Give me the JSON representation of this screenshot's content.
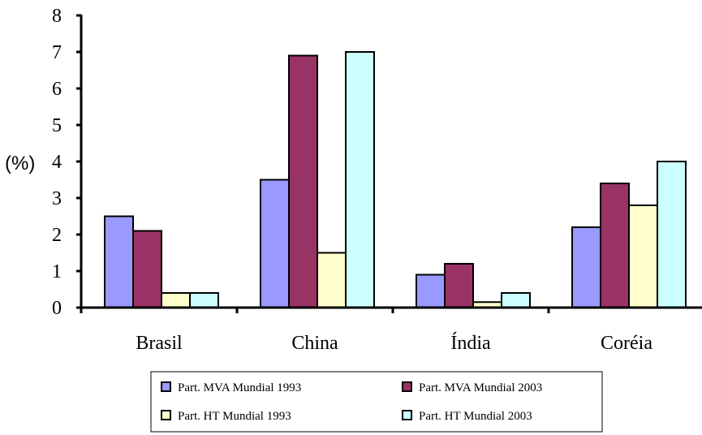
{
  "chart_data": {
    "type": "bar",
    "categories": [
      "Brasil",
      "China",
      "Índia",
      "Coréia"
    ],
    "ylabel": "(%)",
    "ylim": [
      0,
      8
    ],
    "yticks": [
      "0",
      "1",
      "2",
      "3",
      "4",
      "5",
      "6",
      "7",
      "8"
    ],
    "grid": false,
    "legend_position": "bottom",
    "series": [
      {
        "name": "Part. MVA Mundial 1993",
        "color": "#9999ff",
        "values": [
          2.5,
          3.5,
          0.9,
          2.2
        ]
      },
      {
        "name": "Part. MVA Mundial 2003",
        "color": "#993366",
        "values": [
          2.1,
          6.9,
          1.2,
          3.4
        ]
      },
      {
        "name": "Part. HT Mundial 1993",
        "color": "#ffffcc",
        "values": [
          0.4,
          1.5,
          0.15,
          2.8
        ]
      },
      {
        "name": "Part. HT Mundial 2003",
        "color": "#ccffff",
        "values": [
          0.4,
          7.0,
          0.4,
          4.0
        ]
      }
    ]
  }
}
